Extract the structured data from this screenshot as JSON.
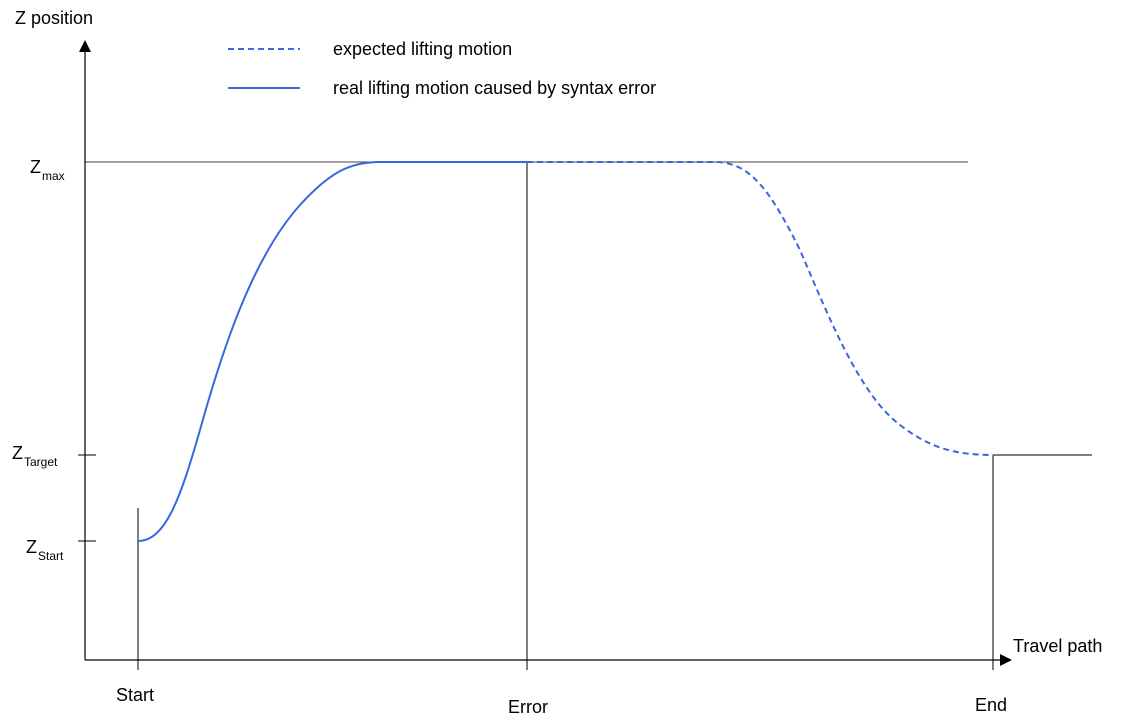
{
  "axes": {
    "y_label": "Z position",
    "x_label": "Travel path"
  },
  "legend": {
    "expected": "expected lifting motion",
    "real": "real lifting motion caused by syntax error"
  },
  "y_levels": {
    "z_max": {
      "main": "Z",
      "sub": "max"
    },
    "z_target": {
      "main": "Z",
      "sub": "Target"
    },
    "z_start": {
      "main": "Z",
      "sub": "Start"
    }
  },
  "x_markers": {
    "start": "Start",
    "error": "Error",
    "end": "End"
  },
  "colors": {
    "curve": "#3a66e0",
    "axis": "#000000",
    "reference": "#000000"
  }
}
